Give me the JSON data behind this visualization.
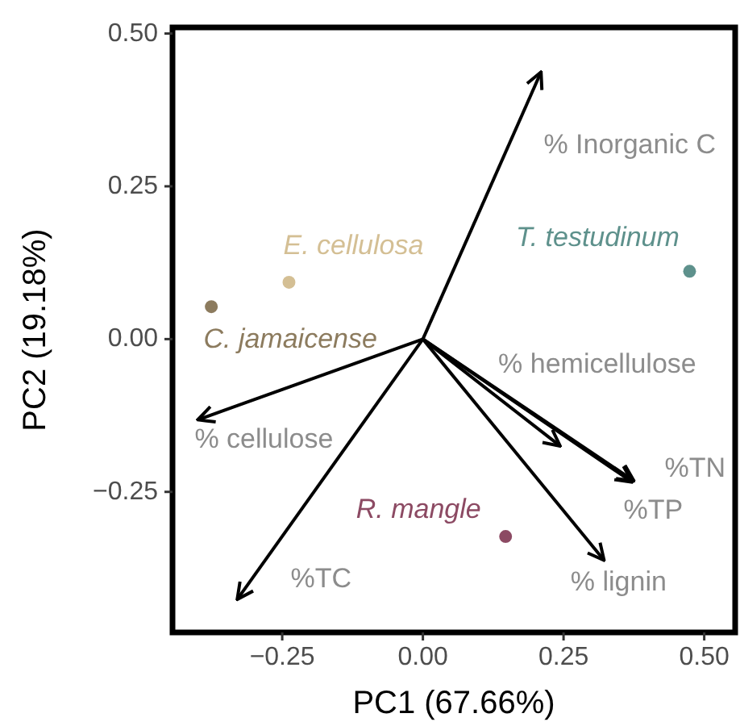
{
  "chart_data": {
    "type": "scatter",
    "xlabel": "PC1 (67.66%)",
    "ylabel": "PC2 (19.18%)",
    "xlim": [
      -0.445,
      0.555
    ],
    "ylim": [
      -0.48,
      0.51
    ],
    "xticks": [
      {
        "value": -0.25,
        "label": "−0.25"
      },
      {
        "value": 0,
        "label": "0.00"
      },
      {
        "value": 0.25,
        "label": "0.25"
      },
      {
        "value": 0.5,
        "label": "0.50"
      }
    ],
    "yticks": [
      {
        "value": -0.25,
        "label": "−0.25"
      },
      {
        "value": 0,
        "label": "0.00"
      },
      {
        "value": 0.25,
        "label": "0.25"
      },
      {
        "value": 0.5,
        "label": "0.50"
      }
    ],
    "marker": "circle",
    "series": [
      {
        "type": "line",
        "name": "% Inorganic C",
        "color": "#000000",
        "marker": "none",
        "x": [
          0,
          0.21
        ],
        "values": [
          0,
          0.437
        ]
      },
      {
        "type": "line",
        "name": "% hemicellulose",
        "color": "#000000",
        "marker": "none",
        "x": [
          0,
          0.244
        ],
        "values": [
          0,
          -0.175
        ]
      },
      {
        "type": "line",
        "name": "% cellulose",
        "color": "#000000",
        "marker": "none",
        "x": [
          0,
          -0.4
        ],
        "values": [
          0,
          -0.132
        ]
      },
      {
        "type": "line",
        "name": "%TC",
        "color": "#000000",
        "marker": "none",
        "x": [
          0,
          -0.33
        ],
        "values": [
          0,
          -0.426
        ]
      },
      {
        "type": "line",
        "name": "%TN",
        "color": "#000000",
        "marker": "none",
        "x": [
          0,
          0.375
        ],
        "values": [
          0,
          -0.232
        ]
      },
      {
        "type": "line",
        "name": "%TP",
        "color": "#000000",
        "marker": "none",
        "x": [
          0,
          0.372
        ],
        "values": [
          0,
          -0.234
        ]
      },
      {
        "type": "line",
        "name": "% lignin",
        "color": "#000000",
        "marker": "none",
        "x": [
          0,
          0.322
        ],
        "values": [
          0,
          -0.362
        ]
      },
      {
        "name": "C. jamaicense",
        "color": "#8c7b5e",
        "x": [
          -0.376
        ],
        "values": [
          0.053
        ]
      },
      {
        "name": "E. cellulosa",
        "color": "#d4bf94",
        "x": [
          -0.238
        ],
        "values": [
          0.093
        ]
      },
      {
        "name": "T. testudinum",
        "color": "#5e918c",
        "x": [
          0.474
        ],
        "values": [
          0.111
        ]
      },
      {
        "name": "R. mangle",
        "color": "#8c4a63",
        "x": [
          0.147
        ],
        "values": [
          -0.323
        ]
      }
    ]
  }
}
